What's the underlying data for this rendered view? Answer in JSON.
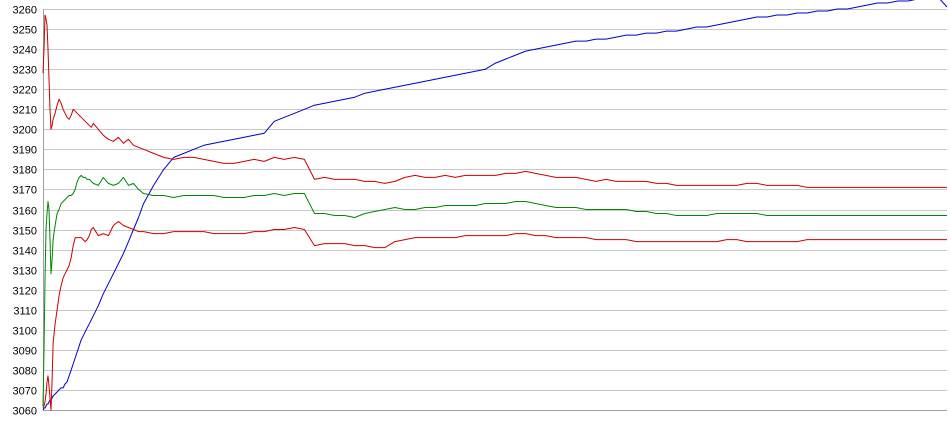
{
  "chart_data": {
    "type": "line",
    "title": "",
    "xlabel": "",
    "ylabel": "",
    "ylim": [
      3060,
      3260
    ],
    "y_ticks": [
      3060,
      3070,
      3080,
      3090,
      3100,
      3110,
      3120,
      3130,
      3140,
      3150,
      3160,
      3170,
      3180,
      3190,
      3200,
      3210,
      3220,
      3230,
      3240,
      3250,
      3260
    ],
    "grid": true,
    "legend": "none",
    "x": [
      0,
      1,
      2,
      3,
      4,
      5,
      6,
      7,
      8,
      9,
      10,
      12,
      14,
      16,
      18,
      20,
      22,
      24,
      26,
      28,
      30,
      32,
      34,
      36,
      38,
      40,
      42,
      44,
      46,
      48,
      50,
      55,
      60,
      65,
      70,
      75,
      80,
      85,
      90,
      95,
      100,
      110,
      120,
      130,
      140,
      150,
      160,
      170,
      180,
      190,
      200,
      210,
      220,
      230,
      240,
      250,
      260,
      270,
      280,
      290,
      300,
      310,
      320,
      330,
      340,
      350,
      360,
      370,
      380,
      390,
      400,
      410,
      420,
      430,
      440,
      450,
      460,
      470,
      480,
      490,
      500,
      510,
      520,
      530,
      540,
      550,
      560,
      570,
      580,
      590,
      600,
      610,
      620,
      630,
      640,
      650,
      660,
      670,
      680,
      690,
      700,
      710,
      720,
      730,
      740,
      750,
      760,
      770,
      780,
      790,
      800,
      810,
      820,
      830,
      840,
      850,
      860,
      870,
      880,
      890,
      899
    ],
    "series": [
      {
        "color": "#0000cc",
        "values": [
          3060,
          3061,
          3061,
          3062,
          3063,
          3063,
          3064,
          3065,
          3065,
          3066,
          3067,
          3068,
          3069,
          3070,
          3071,
          3071,
          3073,
          3074,
          3077,
          3080,
          3083,
          3086,
          3089,
          3092,
          3095,
          3097,
          3099,
          3101,
          3103,
          3105,
          3107,
          3112,
          3118,
          3123,
          3128,
          3133,
          3138,
          3144,
          3150,
          3156,
          3163,
          3172,
          3180,
          3186,
          3188,
          3190,
          3192,
          3193,
          3194,
          3195,
          3196,
          3197,
          3198,
          3204,
          3206,
          3208,
          3210,
          3212,
          3213,
          3214,
          3215,
          3216,
          3218,
          3219,
          3220,
          3221,
          3222,
          3223,
          3224,
          3225,
          3226,
          3227,
          3228,
          3229,
          3230,
          3233,
          3235,
          3237,
          3239,
          3240,
          3241,
          3242,
          3243,
          3244,
          3244,
          3245,
          3245,
          3246,
          3247,
          3247,
          3248,
          3248,
          3249,
          3249,
          3250,
          3251,
          3251,
          3252,
          3253,
          3254,
          3255,
          3256,
          3256,
          3257,
          3257,
          3258,
          3258,
          3259,
          3259,
          3260,
          3260,
          3261,
          3262,
          3263,
          3263,
          3264,
          3264,
          3265,
          3265,
          3266,
          3261
        ]
      },
      {
        "color": "#cc0000",
        "values": [
          3228,
          3240,
          3257,
          3255,
          3252,
          3240,
          3225,
          3210,
          3200,
          3202,
          3205,
          3208,
          3212,
          3215,
          3213,
          3210,
          3208,
          3206,
          3205,
          3207,
          3210,
          3209,
          3208,
          3207,
          3206,
          3205,
          3204,
          3203,
          3202,
          3201,
          3203,
          3200,
          3197,
          3195,
          3194,
          3196,
          3193,
          3195,
          3192,
          3191,
          3190,
          3188,
          3186,
          3185,
          3186,
          3186,
          3185,
          3184,
          3183,
          3183,
          3184,
          3185,
          3184,
          3186,
          3185,
          3186,
          3185,
          3175,
          3176,
          3175,
          3175,
          3175,
          3174,
          3174,
          3173,
          3174,
          3176,
          3177,
          3176,
          3176,
          3177,
          3176,
          3177,
          3177,
          3177,
          3177,
          3178,
          3178,
          3179,
          3178,
          3177,
          3176,
          3176,
          3176,
          3175,
          3174,
          3175,
          3174,
          3174,
          3174,
          3174,
          3173,
          3173,
          3172,
          3172,
          3172,
          3172,
          3172,
          3172,
          3172,
          3173,
          3173,
          3172,
          3172,
          3172,
          3172,
          3171,
          3171,
          3171,
          3171,
          3171,
          3171,
          3171,
          3171,
          3171,
          3171,
          3171,
          3171,
          3171,
          3171,
          3171
        ]
      },
      {
        "color": "#008800",
        "values": [
          3062,
          3090,
          3125,
          3150,
          3158,
          3164,
          3160,
          3145,
          3128,
          3135,
          3145,
          3152,
          3158,
          3160,
          3163,
          3164,
          3165,
          3166,
          3167,
          3167,
          3168,
          3170,
          3174,
          3176,
          3177,
          3176,
          3176,
          3175,
          3175,
          3174,
          3173,
          3172,
          3176,
          3173,
          3172,
          3173,
          3176,
          3172,
          3173,
          3170,
          3168,
          3167,
          3167,
          3166,
          3167,
          3167,
          3167,
          3167,
          3166,
          3166,
          3166,
          3167,
          3167,
          3168,
          3167,
          3168,
          3168,
          3158,
          3158,
          3157,
          3157,
          3156,
          3158,
          3159,
          3160,
          3161,
          3160,
          3160,
          3161,
          3161,
          3162,
          3162,
          3162,
          3162,
          3163,
          3163,
          3163,
          3164,
          3164,
          3163,
          3162,
          3161,
          3161,
          3161,
          3160,
          3160,
          3160,
          3160,
          3160,
          3159,
          3159,
          3158,
          3158,
          3157,
          3157,
          3157,
          3157,
          3158,
          3158,
          3158,
          3158,
          3158,
          3157,
          3157,
          3157,
          3157,
          3157,
          3157,
          3157,
          3157,
          3157,
          3157,
          3157,
          3157,
          3157,
          3157,
          3157,
          3157,
          3157,
          3157,
          3157
        ]
      },
      {
        "color": "#cc0000",
        "values": [
          3061,
          3062,
          3064,
          3068,
          3074,
          3077,
          3072,
          3066,
          3060,
          3075,
          3093,
          3103,
          3110,
          3117,
          3122,
          3126,
          3128,
          3130,
          3132,
          3136,
          3142,
          3146,
          3146,
          3146,
          3146,
          3145,
          3144,
          3145,
          3147,
          3150,
          3151,
          3147,
          3148,
          3147,
          3152,
          3154,
          3152,
          3151,
          3150,
          3149,
          3149,
          3148,
          3148,
          3149,
          3149,
          3149,
          3149,
          3148,
          3148,
          3148,
          3148,
          3149,
          3149,
          3150,
          3150,
          3151,
          3150,
          3142,
          3143,
          3143,
          3143,
          3142,
          3142,
          3141,
          3141,
          3144,
          3145,
          3146,
          3146,
          3146,
          3146,
          3146,
          3147,
          3147,
          3147,
          3147,
          3147,
          3148,
          3148,
          3147,
          3147,
          3146,
          3146,
          3146,
          3146,
          3145,
          3145,
          3145,
          3145,
          3144,
          3144,
          3144,
          3144,
          3144,
          3144,
          3144,
          3144,
          3144,
          3145,
          3145,
          3144,
          3144,
          3144,
          3144,
          3144,
          3144,
          3145,
          3145,
          3145,
          3145,
          3145,
          3145,
          3145,
          3145,
          3145,
          3145,
          3145,
          3145,
          3145,
          3145,
          3145
        ]
      }
    ]
  }
}
